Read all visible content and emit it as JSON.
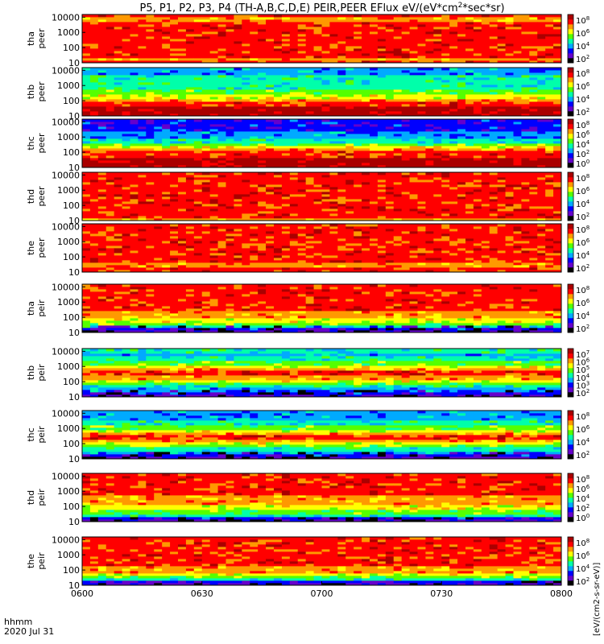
{
  "chart_data": {
    "type": "heatmap",
    "title": "P5, P1, P2, P3, P4 (TH-A,B,C,D,E) PEIR,PEER EFlux eV/(eV*cm",
    "title_sup": "2",
    "title_tail": "*sec*sr)",
    "date": "2020 Jul 31",
    "time_axis_label": "hhmm",
    "x_ticks": [
      "0600",
      "0630",
      "0700",
      "0730",
      "0800"
    ],
    "x_range": [
      "0600",
      "0800"
    ],
    "y_scale": "log",
    "y_ticks": [
      "10",
      "100",
      "1000",
      "10000"
    ],
    "colorbar_scale": "log",
    "colorbar_units": "[eV/(cm2-s-sr-eV)]",
    "colormap": [
      "#000000",
      "#6600cc",
      "#0000ff",
      "#00aaff",
      "#00ffaa",
      "#55ff00",
      "#ffff00",
      "#ff9900",
      "#ff0000",
      "#aa0000"
    ],
    "panels": [
      {
        "probe": "tha",
        "species": "peer",
        "cbar_ticks": [
          "10^8",
          "10^6",
          "10^4",
          "10^2"
        ]
      },
      {
        "probe": "thb",
        "species": "peer",
        "cbar_ticks": [
          "10^8",
          "10^6",
          "10^4",
          "10^2"
        ]
      },
      {
        "probe": "thc",
        "species": "peer",
        "cbar_ticks": [
          "10^8",
          "10^6",
          "10^4",
          "10^2",
          "10^0"
        ]
      },
      {
        "probe": "thd",
        "species": "peer",
        "cbar_ticks": [
          "10^8",
          "10^6",
          "10^4",
          "10^2"
        ]
      },
      {
        "probe": "the",
        "species": "peer",
        "cbar_ticks": [
          "10^8",
          "10^6",
          "10^4",
          "10^2"
        ]
      },
      {
        "probe": "tha",
        "species": "peir",
        "cbar_ticks": [
          "10^8",
          "10^6",
          "10^4",
          "10^2"
        ]
      },
      {
        "probe": "thb",
        "species": "peir",
        "cbar_ticks": [
          "10^7",
          "10^6",
          "10^5",
          "10^4",
          "10^3",
          "10^2"
        ]
      },
      {
        "probe": "thc",
        "species": "peir",
        "cbar_ticks": [
          "10^8",
          "10^6",
          "10^4",
          "10^2"
        ]
      },
      {
        "probe": "thd",
        "species": "peir",
        "cbar_ticks": [
          "10^8",
          "10^6",
          "10^4",
          "10^2",
          "10^0"
        ]
      },
      {
        "probe": "the",
        "species": "peir",
        "cbar_ticks": [
          "10^8",
          "10^6",
          "10^4",
          "10^2"
        ]
      }
    ]
  }
}
